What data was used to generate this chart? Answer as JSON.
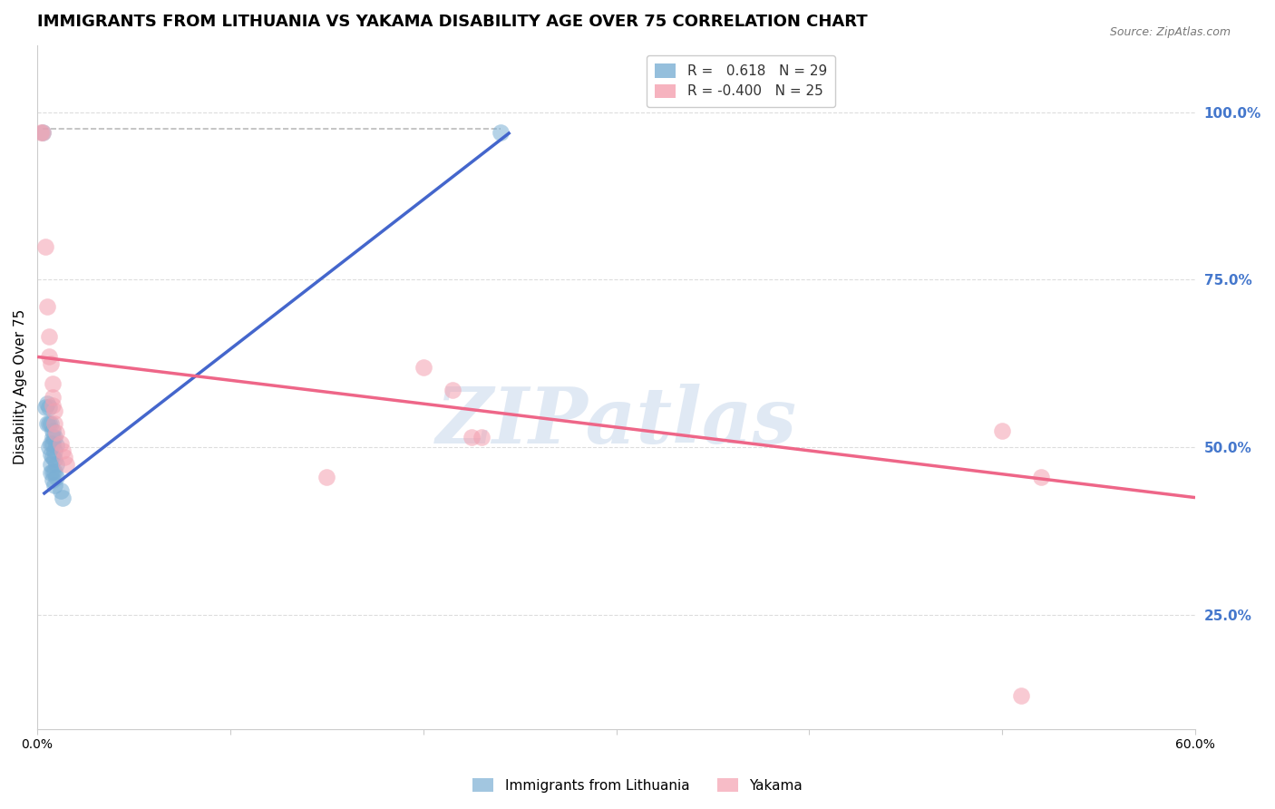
{
  "title": "IMMIGRANTS FROM LITHUANIA VS YAKAMA DISABILITY AGE OVER 75 CORRELATION CHART",
  "source": "Source: ZipAtlas.com",
  "ylabel": "Disability Age Over 75",
  "xlim": [
    0.0,
    0.6
  ],
  "ylim": [
    0.08,
    1.1
  ],
  "xticks": [
    0.0,
    0.1,
    0.2,
    0.3,
    0.4,
    0.5,
    0.6
  ],
  "xticklabels": [
    "0.0%",
    "",
    "",
    "",
    "",
    "",
    "60.0%"
  ],
  "yticks_right": [
    0.25,
    0.5,
    0.75,
    1.0
  ],
  "ytick_right_labels": [
    "25.0%",
    "50.0%",
    "75.0%",
    "100.0%"
  ],
  "blue_color": "#7BAFD4",
  "pink_color": "#F4A0B0",
  "blue_line_color": "#4466CC",
  "pink_line_color": "#EE6688",
  "watermark_text": "ZIPatlas",
  "watermark_color": "#C8D8EC",
  "blue_dots": [
    [
      0.003,
      0.97
    ],
    [
      0.004,
      0.56
    ],
    [
      0.005,
      0.565
    ],
    [
      0.005,
      0.535
    ],
    [
      0.006,
      0.56
    ],
    [
      0.006,
      0.535
    ],
    [
      0.006,
      0.5
    ],
    [
      0.007,
      0.535
    ],
    [
      0.007,
      0.505
    ],
    [
      0.007,
      0.49
    ],
    [
      0.007,
      0.475
    ],
    [
      0.007,
      0.462
    ],
    [
      0.008,
      0.525
    ],
    [
      0.008,
      0.515
    ],
    [
      0.008,
      0.505
    ],
    [
      0.008,
      0.485
    ],
    [
      0.008,
      0.464
    ],
    [
      0.008,
      0.452
    ],
    [
      0.009,
      0.515
    ],
    [
      0.009,
      0.495
    ],
    [
      0.009,
      0.483
    ],
    [
      0.009,
      0.464
    ],
    [
      0.009,
      0.444
    ],
    [
      0.01,
      0.503
    ],
    [
      0.01,
      0.475
    ],
    [
      0.01,
      0.455
    ],
    [
      0.012,
      0.435
    ],
    [
      0.013,
      0.424
    ],
    [
      0.24,
      0.97
    ]
  ],
  "pink_dots": [
    [
      0.002,
      0.97
    ],
    [
      0.003,
      0.97
    ],
    [
      0.004,
      0.8
    ],
    [
      0.005,
      0.71
    ],
    [
      0.006,
      0.665
    ],
    [
      0.006,
      0.635
    ],
    [
      0.007,
      0.625
    ],
    [
      0.008,
      0.595
    ],
    [
      0.008,
      0.575
    ],
    [
      0.008,
      0.562
    ],
    [
      0.009,
      0.555
    ],
    [
      0.009,
      0.535
    ],
    [
      0.01,
      0.522
    ],
    [
      0.012,
      0.505
    ],
    [
      0.013,
      0.495
    ],
    [
      0.014,
      0.485
    ],
    [
      0.015,
      0.475
    ],
    [
      0.2,
      0.62
    ],
    [
      0.215,
      0.585
    ],
    [
      0.225,
      0.515
    ],
    [
      0.23,
      0.515
    ],
    [
      0.15,
      0.455
    ],
    [
      0.5,
      0.525
    ],
    [
      0.51,
      0.13
    ],
    [
      0.52,
      0.455
    ]
  ],
  "blue_trendline_x": [
    0.003,
    0.245
  ],
  "blue_trendline_y": [
    0.43,
    0.97
  ],
  "pink_trendline_x": [
    0.0,
    0.6
  ],
  "pink_trendline_y": [
    0.635,
    0.425
  ],
  "dashed_line_x": [
    0.003,
    0.24
  ],
  "dashed_line_y": [
    0.975,
    0.975
  ],
  "background_color": "#FFFFFF",
  "grid_color": "#DDDDDD",
  "title_fontsize": 13,
  "axis_label_fontsize": 11,
  "tick_fontsize": 10,
  "right_tick_color": "#4477CC",
  "legend_blue_label_r": "R =   0.618",
  "legend_blue_label_n": "N = 29",
  "legend_pink_label_r": "R = -0.400",
  "legend_pink_label_n": "N = 25"
}
